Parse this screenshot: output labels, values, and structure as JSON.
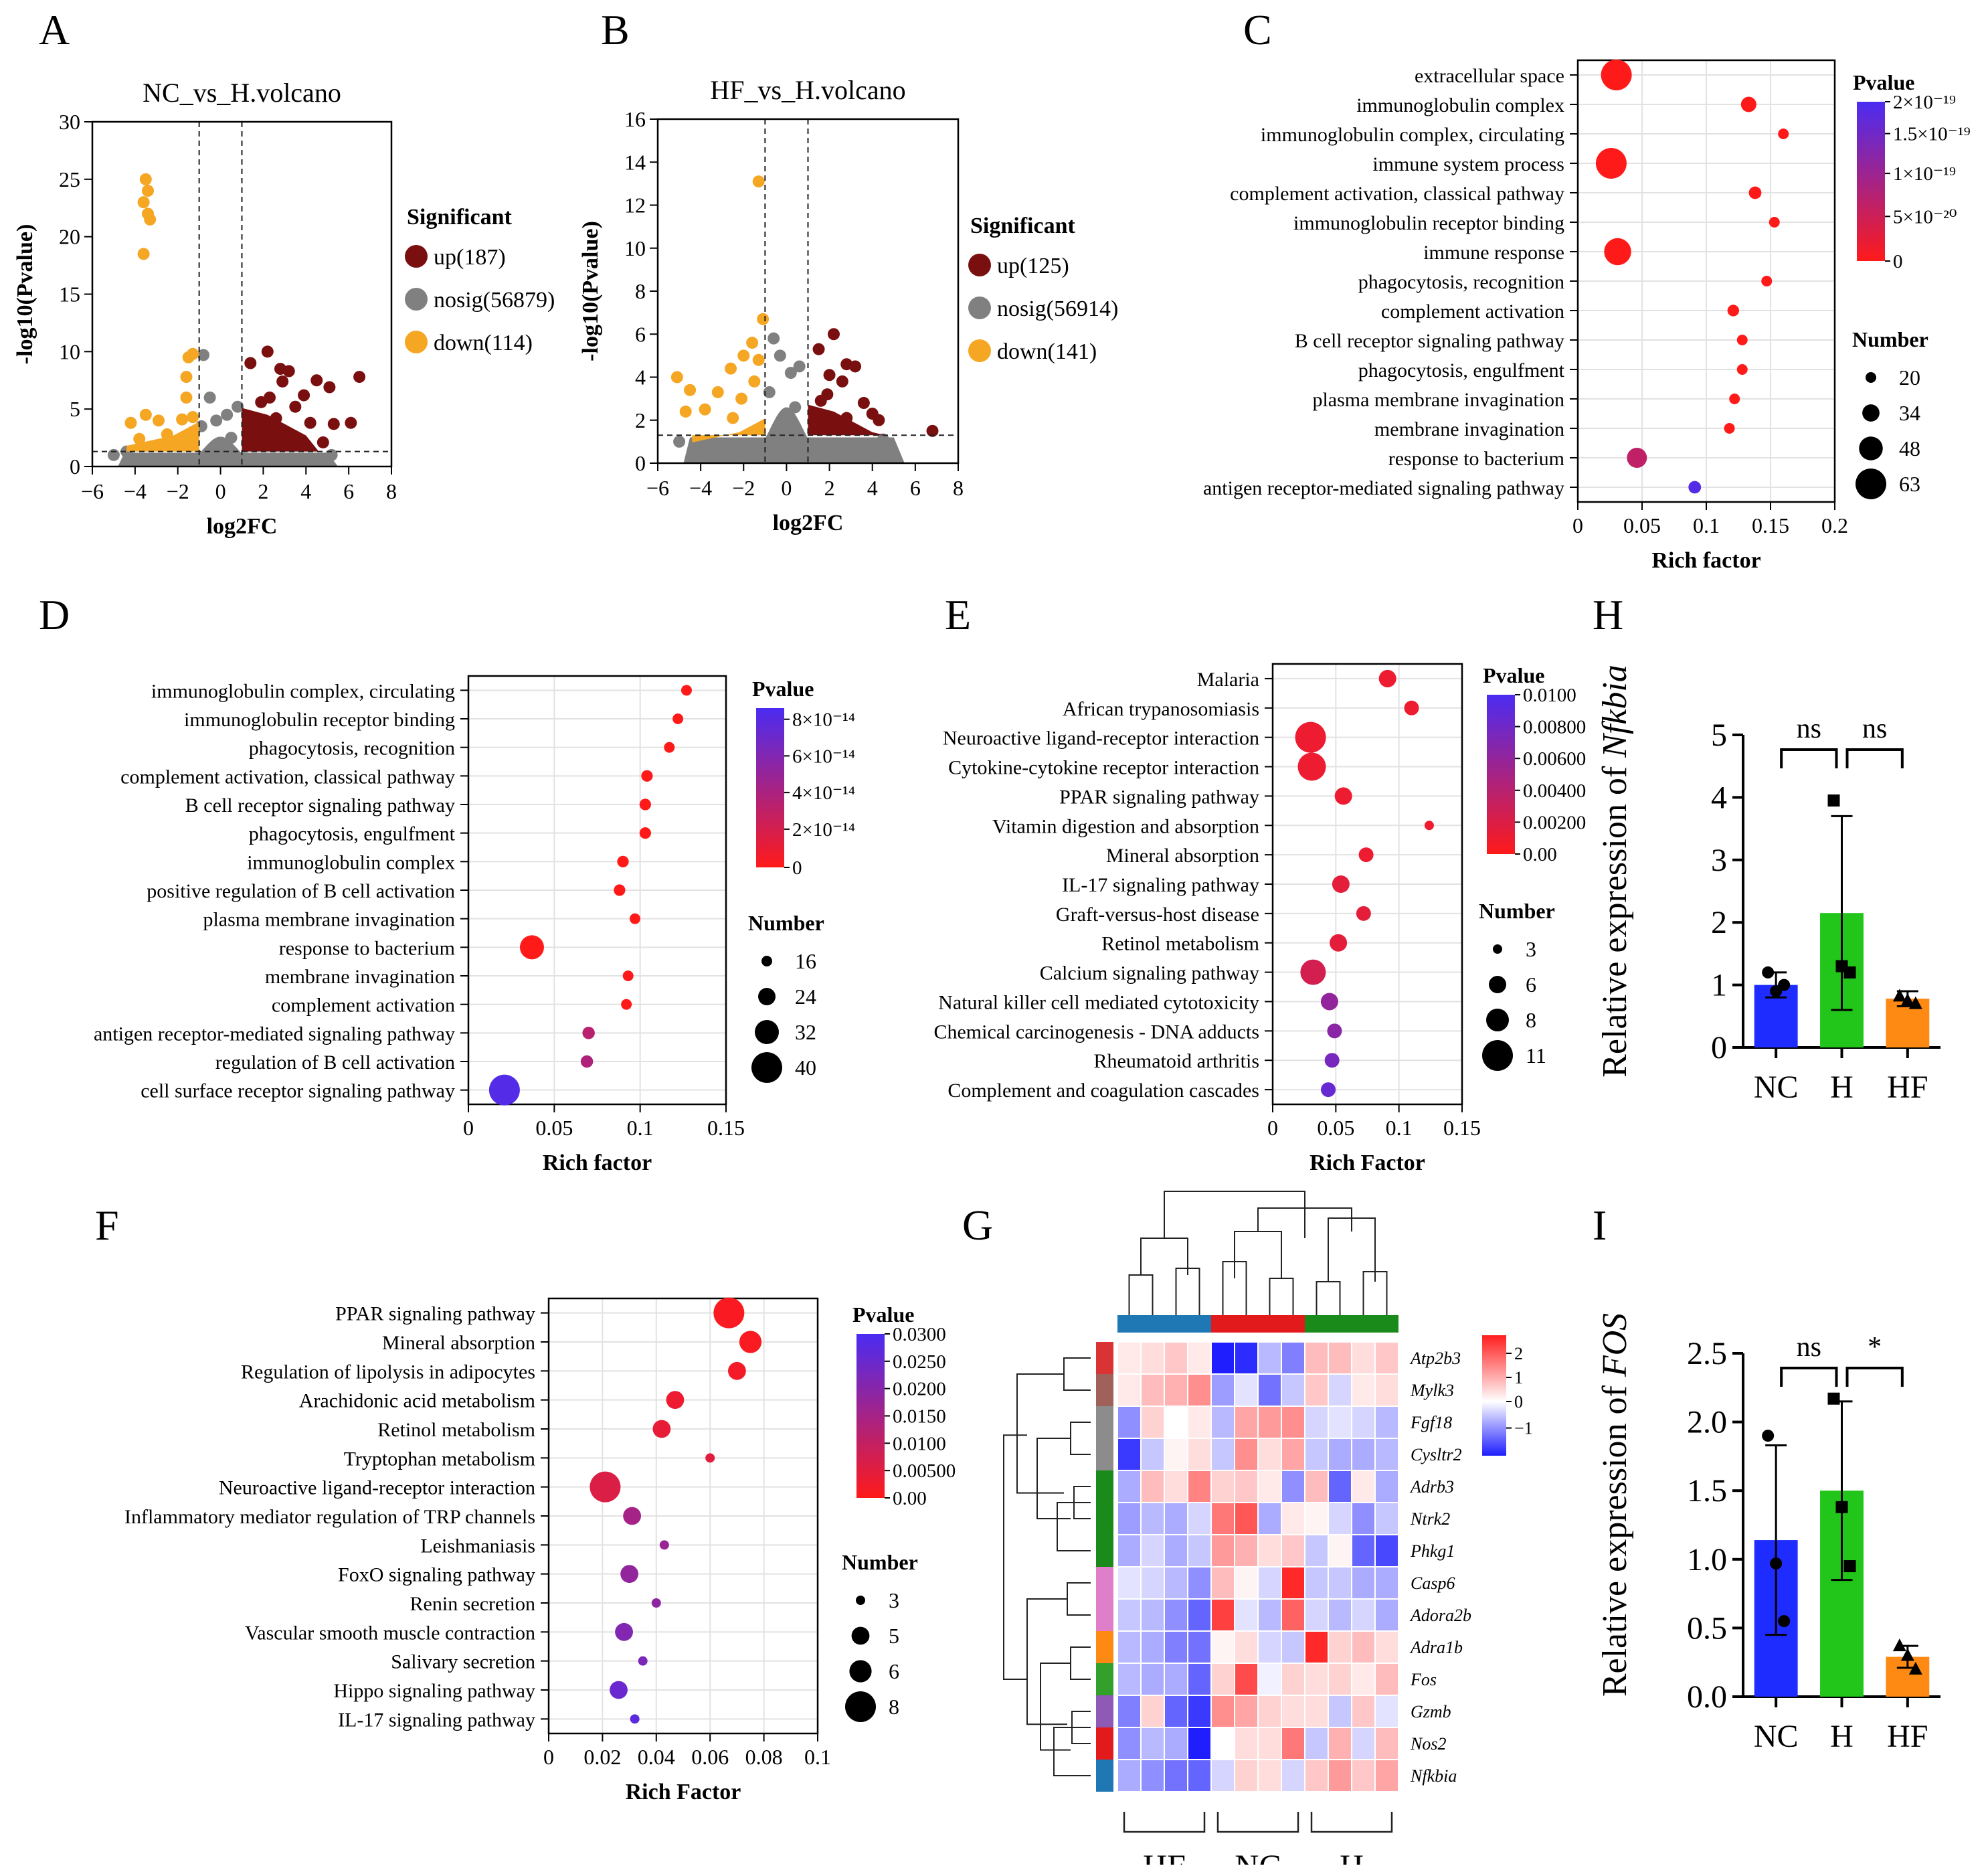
{
  "colors": {
    "up": "#7a0f0f",
    "nosig": "#808080",
    "down": "#f5a623",
    "pLow": "#ff1a1a",
    "pHigh": "#4b2cf2",
    "NC": "#1f2cff",
    "H": "#22c51a",
    "HF": "#ff8a13"
  },
  "chart_data": [
    {
      "panel": "A",
      "type": "scatter",
      "title": "NC_vs_H.volcano",
      "xlabel": "log2FC",
      "ylabel": "-log10(Pvalue)",
      "xlim": [
        -6,
        8
      ],
      "ylim": [
        0,
        30
      ],
      "xticks": [
        "−6",
        "−4",
        "−2",
        "0",
        "2",
        "4",
        "6",
        "8"
      ],
      "yticks": [
        "0",
        "5",
        "10",
        "15",
        "20",
        "25",
        "30"
      ],
      "vlines": [
        -1,
        1
      ],
      "hline": 1.3,
      "legend_title": "Significant",
      "legend": [
        "up(187)",
        "nosig(56879)",
        "down(114)"
      ],
      "points_down": [
        [
          -3.5,
          25
        ],
        [
          -3.4,
          24
        ],
        [
          -3.6,
          23
        ],
        [
          -3.4,
          22
        ],
        [
          -3.3,
          21.5
        ],
        [
          -3.6,
          18.5
        ],
        [
          -1.3,
          9.8
        ],
        [
          -1.5,
          9.5
        ],
        [
          -1.6,
          7.8
        ],
        [
          -1.6,
          6
        ],
        [
          -3.5,
          4.5
        ],
        [
          -4.2,
          3.8
        ],
        [
          -2.9,
          4
        ],
        [
          -1.8,
          4.1
        ],
        [
          -1.3,
          4.3
        ],
        [
          -2.5,
          2.8
        ],
        [
          -3.8,
          2.4
        ],
        [
          -2,
          2.2
        ]
      ],
      "points_up": [
        [
          2.2,
          10
        ],
        [
          1.4,
          9
        ],
        [
          2.8,
          8.5
        ],
        [
          3.2,
          8.3
        ],
        [
          4.5,
          7.5
        ],
        [
          6.5,
          7.8
        ],
        [
          2.9,
          7.4
        ],
        [
          5.1,
          6.9
        ],
        [
          2.3,
          6
        ],
        [
          3.5,
          5.2
        ],
        [
          1.9,
          5.6
        ],
        [
          3.9,
          6.2
        ],
        [
          4.2,
          3.8
        ],
        [
          6.1,
          3.8
        ],
        [
          2.6,
          4.2
        ],
        [
          5.3,
          3.7
        ],
        [
          1.8,
          3.3
        ],
        [
          4.8,
          2.1
        ]
      ],
      "points_nosig": [
        [
          -5,
          1.0
        ],
        [
          -0.8,
          9.7
        ],
        [
          -0.5,
          6
        ],
        [
          -0.2,
          4
        ],
        [
          0.3,
          4.5
        ],
        [
          0.8,
          5.2
        ],
        [
          -0.9,
          3.5
        ],
        [
          0.5,
          2.5
        ],
        [
          5.2,
          1.0
        ],
        [
          -4.4,
          1.3
        ]
      ]
    },
    {
      "panel": "B",
      "type": "scatter",
      "title": "HF_vs_H.volcano",
      "xlabel": "log2FC",
      "ylabel": "-log10(Pvalue)",
      "xlim": [
        -6,
        8
      ],
      "ylim": [
        0,
        16
      ],
      "xticks": [
        "−6",
        "−4",
        "−2",
        "0",
        "2",
        "4",
        "6",
        "8"
      ],
      "yticks": [
        "0",
        "2",
        "4",
        "6",
        "8",
        "10",
        "12",
        "14",
        "16"
      ],
      "vlines": [
        -1,
        1
      ],
      "hline": 1.3,
      "legend_title": "Significant",
      "legend": [
        "up(125)",
        "nosig(56914)",
        "down(141)"
      ],
      "points_down": [
        [
          -1.3,
          13.1
        ],
        [
          -1.1,
          6.7
        ],
        [
          -5.1,
          4
        ],
        [
          -4.5,
          3.4
        ],
        [
          -1.6,
          5.6
        ],
        [
          -2,
          5
        ],
        [
          -2.6,
          4.4
        ],
        [
          -1.3,
          4.8
        ],
        [
          -4.7,
          2.4
        ],
        [
          -3.2,
          3.3
        ],
        [
          -2.1,
          3
        ],
        [
          -1.5,
          3.8
        ],
        [
          -3.8,
          2.5
        ],
        [
          -2.5,
          2.1
        ]
      ],
      "points_up": [
        [
          2.2,
          6
        ],
        [
          1.5,
          5.3
        ],
        [
          2.8,
          4.6
        ],
        [
          3.2,
          4.5
        ],
        [
          2,
          4.1
        ],
        [
          2.6,
          3.8
        ],
        [
          3.6,
          2.8
        ],
        [
          1.6,
          2.9
        ],
        [
          4,
          2.3
        ],
        [
          2.8,
          2.1
        ],
        [
          4.3,
          2.0
        ],
        [
          6.8,
          1.5
        ],
        [
          1.9,
          3.2
        ]
      ],
      "points_nosig": [
        [
          -0.6,
          5.8
        ],
        [
          -0.3,
          5
        ],
        [
          0.2,
          4.2
        ],
        [
          0.6,
          4.5
        ],
        [
          -0.8,
          3.3
        ],
        [
          0.4,
          2.6
        ],
        [
          -5,
          1.0
        ],
        [
          4.5,
          1.1
        ]
      ]
    },
    {
      "panel": "C",
      "type": "scatter",
      "xlabel": "Rich factor",
      "xlim": [
        0,
        0.2
      ],
      "xticks": [
        "0",
        "0.05",
        "0.1",
        "0.15",
        "0.2"
      ],
      "terms": [
        "extracellular space",
        "immunoglobulin complex",
        "immunoglobulin complex, circulating",
        "immune system process",
        "complement activation, classical pathway",
        "immunoglobulin receptor binding",
        "immune response",
        "phagocytosis, recognition",
        "complement activation",
        "B cell receptor signaling pathway",
        "phagocytosis, engulfment",
        "plasma membrane invagination",
        "membrane invagination",
        "response to bacterium",
        "antigen receptor-mediated signaling pathway"
      ],
      "rich": [
        0.03,
        0.133,
        0.16,
        0.026,
        0.138,
        0.153,
        0.031,
        0.147,
        0.121,
        0.128,
        0.128,
        0.122,
        0.118,
        0.046,
        0.091
      ],
      "number": [
        63,
        30,
        20,
        63,
        24,
        20,
        55,
        20,
        22,
        20,
        20,
        20,
        20,
        40,
        24
      ],
      "p": [
        0,
        0,
        0,
        0,
        0,
        0,
        0,
        0,
        0,
        0,
        0,
        0,
        0,
        0.35,
        0.95
      ],
      "legend_title": "Pvalue",
      "legend_ticks": [
        "2×10⁻¹⁹",
        "1.5×10⁻¹⁹",
        "1×10⁻¹⁹",
        "5×10⁻²⁰",
        "0"
      ],
      "size_title": "Number",
      "size_ticks": [
        "20",
        "34",
        "48",
        "63"
      ]
    },
    {
      "panel": "D",
      "type": "scatter",
      "xlabel": "Rich factor",
      "xlim": [
        0,
        0.15
      ],
      "xticks": [
        "0",
        "0.05",
        "0.1",
        "0.15"
      ],
      "terms": [
        "immunoglobulin complex, circulating",
        "immunoglobulin receptor binding",
        "phagocytosis, recognition",
        "complement activation, classical pathway",
        "B cell receptor signaling pathway",
        "phagocytosis, engulfment",
        "immunoglobulin complex",
        "positive regulation of B cell activation",
        "plasma membrane invagination",
        "response to bacterium",
        "membrane invagination",
        "complement activation",
        "antigen receptor-mediated signaling pathway",
        "regulation of B cell activation",
        "cell surface receptor signaling pathway"
      ],
      "rich": [
        0.127,
        0.122,
        0.117,
        0.104,
        0.103,
        0.103,
        0.09,
        0.088,
        0.097,
        0.037,
        0.093,
        0.092,
        0.07,
        0.069,
        0.021
      ],
      "number": [
        16,
        16,
        16,
        17,
        17,
        17,
        17,
        17,
        16,
        32,
        16,
        16,
        18,
        18,
        40
      ],
      "p": [
        0,
        0,
        0,
        0,
        0,
        0,
        0,
        0,
        0,
        0,
        0,
        0,
        0.4,
        0.45,
        0.95
      ],
      "legend_title": "Pvalue",
      "legend_ticks": [
        "8×10⁻¹⁴",
        "6×10⁻¹⁴",
        "4×10⁻¹⁴",
        "2×10⁻¹⁴",
        "0"
      ],
      "size_title": "Number",
      "size_ticks": [
        "16",
        "24",
        "32",
        "40"
      ]
    },
    {
      "panel": "E",
      "type": "scatter",
      "xlabel": "Rich Factor",
      "xlim": [
        0,
        0.15
      ],
      "xticks": [
        "0",
        "0.05",
        "0.1",
        "0.15"
      ],
      "terms": [
        "Malaria",
        "African trypanosomiasis",
        "Neuroactive ligand-receptor interaction",
        "Cytokine-cytokine receptor interaction",
        "PPAR signaling pathway",
        "Vitamin digestion and absorption",
        "Mineral absorption",
        "IL-17 signaling pathway",
        "Graft-versus-host disease",
        "Retinol metabolism",
        "Calcium signaling pathway",
        "Natural killer cell mediated cytotoxicity",
        "Chemical carcinogenesis - DNA adducts",
        "Rheumatoid arthritis",
        "Complement and coagulation cascades"
      ],
      "rich": [
        0.091,
        0.11,
        0.03,
        0.031,
        0.056,
        0.124,
        0.074,
        0.054,
        0.072,
        0.052,
        0.032,
        0.045,
        0.049,
        0.047,
        0.044
      ],
      "number": [
        6,
        5,
        11,
        10,
        6,
        3,
        5,
        6,
        5,
        6,
        9,
        6,
        5,
        5,
        5
      ],
      "p": [
        0.001,
        0.001,
        0.001,
        0.001,
        0.001,
        0.001,
        0.001,
        0.0015,
        0.0015,
        0.0015,
        0.0025,
        0.006,
        0.0065,
        0.0075,
        0.0085
      ],
      "legend_title": "Pvalue",
      "legend_ticks": [
        "0.0100",
        "0.00800",
        "0.00600",
        "0.00400",
        "0.00200",
        "0.00"
      ],
      "size_title": "Number",
      "size_ticks": [
        "3",
        "6",
        "8",
        "11"
      ]
    },
    {
      "panel": "F",
      "type": "scatter",
      "xlabel": "Rich Factor",
      "xlim": [
        0,
        0.1
      ],
      "xticks": [
        "0",
        "0.02",
        "0.04",
        "0.06",
        "0.08",
        "0.1"
      ],
      "terms": [
        "PPAR signaling pathway",
        "Mineral absorption",
        "Regulation of lipolysis in adipocytes",
        "Arachidonic acid metabolism",
        "Retinol metabolism",
        "Tryptophan metabolism",
        "Neuroactive ligand-receptor interaction",
        "Inflammatory mediator regulation of TRP channels",
        "Leishmaniasis",
        "FoxO signaling pathway",
        "Renin secretion",
        "Vascular smooth muscle contraction",
        "Salivary secretion",
        "Hippo signaling pathway",
        "IL-17 signaling pathway"
      ],
      "rich": [
        0.067,
        0.075,
        0.07,
        0.047,
        0.042,
        0.06,
        0.021,
        0.031,
        0.043,
        0.03,
        0.04,
        0.028,
        0.035,
        0.026,
        0.032
      ],
      "number": [
        8,
        6,
        5,
        5,
        5,
        3,
        8,
        5,
        3,
        5,
        3,
        5,
        3,
        5,
        3
      ],
      "p": [
        0.001,
        0.001,
        0.002,
        0.003,
        0.004,
        0.005,
        0.006,
        0.015,
        0.017,
        0.018,
        0.019,
        0.021,
        0.022,
        0.025,
        0.027
      ],
      "legend_title": "Pvalue",
      "legend_ticks": [
        "0.0300",
        "0.0250",
        "0.0200",
        "0.0150",
        "0.0100",
        "0.00500",
        "0.00"
      ],
      "size_title": "Number",
      "size_ticks": [
        "3",
        "5",
        "6",
        "8"
      ]
    },
    {
      "panel": "G",
      "type": "heatmap",
      "genes": [
        "Atp2b3",
        "Mylk3",
        "Fgf18",
        "Cysltr2",
        "Adrb3",
        "Ntrk2",
        "Phkg1",
        "Casp6",
        "Adora2b",
        "Adra1b",
        "Fos",
        "Gzmb",
        "Nos2",
        "Nfkbia"
      ],
      "groups": [
        "HF",
        "NC",
        "H"
      ],
      "scale_ticks": [
        "2",
        "1",
        "0",
        "−1"
      ],
      "row_colors": [
        "#d93333",
        "#a0615a",
        "#8c8c8c",
        "#8c8c8c",
        "#1a8a1a",
        "#1a8a1a",
        "#1a8a1a",
        "#e07fc9",
        "#e07fc9",
        "#ff8a13",
        "#33a02c",
        "#8e5ab5",
        "#e31a1c",
        "#1f78b4"
      ],
      "values": [
        [
          0.2,
          0.3,
          0.5,
          0.2,
          -1.6,
          -1.5,
          -0.5,
          -0.9,
          0.6,
          0.6,
          0.3,
          0.5
        ],
        [
          0.2,
          0.6,
          0.7,
          1.0,
          -0.7,
          -0.2,
          -1.0,
          -0.4,
          0.5,
          -0.3,
          0.2,
          0.3
        ],
        [
          -0.8,
          0.4,
          0,
          0.2,
          -0.5,
          0.8,
          0.9,
          1.0,
          -0.3,
          -0.2,
          -0.3,
          -0.5
        ],
        [
          -1.4,
          -0.4,
          0.1,
          0.3,
          -0.4,
          1.0,
          0.3,
          0.8,
          -0.4,
          -0.6,
          -0.6,
          -0.5
        ],
        [
          -0.6,
          0.6,
          0.3,
          1.1,
          0.4,
          0.5,
          0.2,
          -0.8,
          0.6,
          -1.1,
          0.2,
          -0.6
        ],
        [
          -0.7,
          -0.5,
          -0.6,
          -0.3,
          1.2,
          1.5,
          -0.6,
          0.2,
          0.1,
          -0.3,
          -0.8,
          -0.4
        ],
        [
          -0.6,
          -0.3,
          -0.6,
          -0.4,
          0.9,
          0.7,
          0.3,
          0.5,
          -0.4,
          0.1,
          -1.1,
          -1.3
        ],
        [
          -0.2,
          -0.3,
          -0.5,
          -0.8,
          0.6,
          0.1,
          -0.3,
          1.9,
          -0.4,
          -0.4,
          -0.6,
          -0.6
        ],
        [
          -0.4,
          -0.5,
          -0.8,
          -1.1,
          1.7,
          -0.2,
          -0.5,
          1.4,
          -0.3,
          -0.5,
          -0.3,
          -0.6
        ],
        [
          -0.5,
          -0.6,
          -0.9,
          -1.0,
          0.1,
          0.3,
          -0.3,
          -0.4,
          1.9,
          0.4,
          0.6,
          0.3
        ],
        [
          -0.5,
          -0.6,
          -0.6,
          -1.1,
          0.4,
          1.6,
          -0.1,
          0.4,
          0.3,
          0.4,
          0.2,
          0.6
        ],
        [
          -0.9,
          0.4,
          -1.1,
          -1.4,
          1.0,
          0.8,
          0.4,
          0.3,
          0.3,
          -0.4,
          0.5,
          -0.2
        ],
        [
          -0.8,
          -0.5,
          -0.6,
          -1.7,
          0.0,
          0.3,
          0.3,
          1.2,
          -0.4,
          0.7,
          -0.3,
          0.6
        ],
        [
          -0.6,
          -0.8,
          -1.0,
          -1.1,
          -0.3,
          0.4,
          0.3,
          -0.3,
          0.5,
          0.9,
          0.5,
          0.8
        ]
      ]
    },
    {
      "panel": "H",
      "type": "bar",
      "categories": [
        "NC",
        "H",
        "HF"
      ],
      "values": [
        1.0,
        2.15,
        0.78
      ],
      "errors": [
        0.2,
        1.55,
        0.12
      ],
      "points": [
        [
          1.2,
          0.9,
          1.0
        ],
        [
          3.95,
          1.3,
          1.2
        ],
        [
          0.82,
          0.75,
          0.7
        ]
      ],
      "ylabel_prefix": "Relative expression of ",
      "ylabel_gene": "Nfkbia",
      "ylim": [
        0,
        5
      ],
      "yticks": [
        "0",
        "1",
        "2",
        "3",
        "4",
        "5"
      ],
      "sig": [
        "ns",
        "ns"
      ]
    },
    {
      "panel": "I",
      "type": "bar",
      "categories": [
        "NC",
        "H",
        "HF"
      ],
      "values": [
        1.14,
        1.5,
        0.29
      ],
      "errors": [
        0.69,
        0.65,
        0.08
      ],
      "points": [
        [
          1.9,
          0.97,
          0.55
        ],
        [
          2.17,
          1.38,
          0.95
        ],
        [
          0.37,
          0.3,
          0.2
        ]
      ],
      "ylabel_prefix": "Relative expression of ",
      "ylabel_gene": "FOS",
      "ylim": [
        0,
        2.5
      ],
      "yticks": [
        "0.0",
        "0.5",
        "1.0",
        "1.5",
        "2.0",
        "2.5"
      ],
      "sig": [
        "ns",
        "*"
      ]
    }
  ]
}
